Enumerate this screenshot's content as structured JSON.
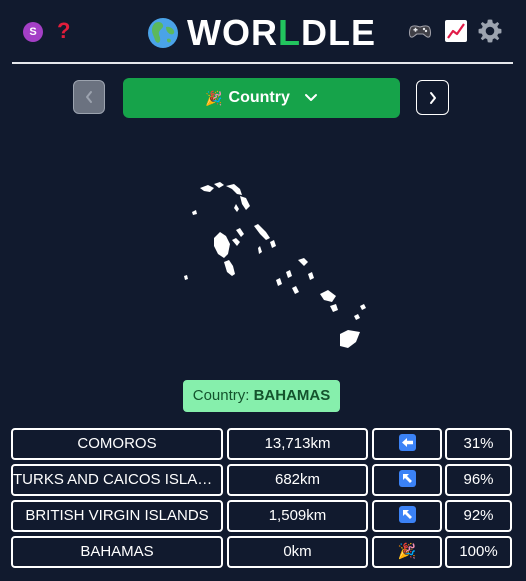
{
  "header": {
    "profile_initial": "S",
    "help_symbol": "?",
    "title_pre": "WOR",
    "title_highlight": "L",
    "title_post": "DLE",
    "icons": [
      "profile-icon",
      "help-icon",
      "globe-icon",
      "game-controller-icon",
      "chart-icon",
      "gear-icon"
    ]
  },
  "nav": {
    "mode_emoji": "🎉",
    "mode_label": "Country"
  },
  "answer": {
    "prefix": "Country: ",
    "name": "BAHAMAS"
  },
  "guesses": [
    {
      "name": "COMOROS",
      "distance": "13,713km",
      "direction": "left-arrow",
      "percent": "31%"
    },
    {
      "name": "TURKS AND CAICOS ISLANDS",
      "distance": "682km",
      "direction": "up-left-arrow",
      "percent": "96%"
    },
    {
      "name": "BRITISH VIRGIN ISLANDS",
      "distance": "1,509km",
      "direction": "up-left-arrow",
      "percent": "92%"
    },
    {
      "name": "BAHAMAS",
      "distance": "0km",
      "direction": "party-popper",
      "direction_emoji": "🎉",
      "percent": "100%"
    }
  ],
  "colors": {
    "background": "#111a2e",
    "accent_green": "#16a34a",
    "title_green": "#22c55e",
    "answer_bg": "#86efac",
    "direction_blue": "#3b82f6"
  }
}
